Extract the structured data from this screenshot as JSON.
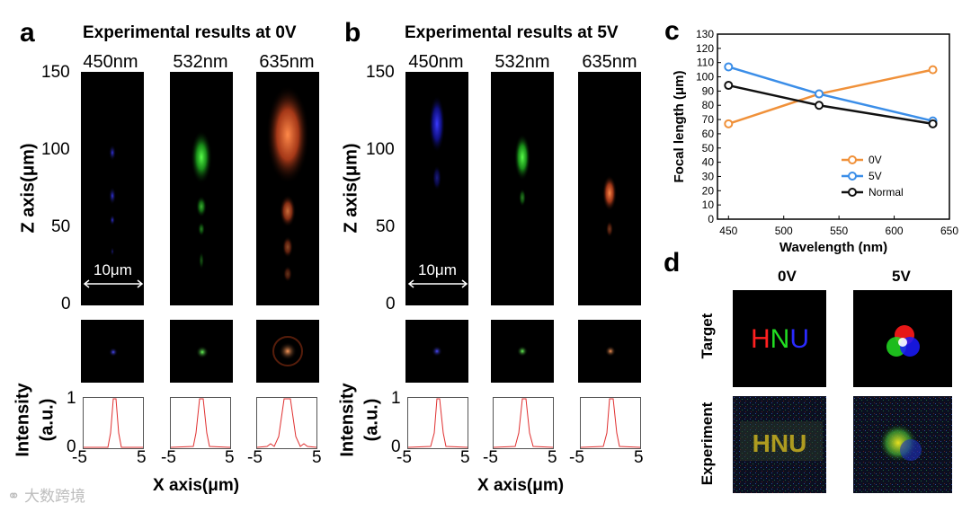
{
  "panel_a": {
    "label": "a",
    "title": "Experimental results at 0V",
    "wavelengths": [
      "450nm",
      "532nm",
      "635nm"
    ],
    "z_axis_label": "Z axis(μm)",
    "z_ticks": [
      "150",
      "100",
      "50",
      "0"
    ],
    "scale_bar": "10μm",
    "intensity_label_1": "Intensity",
    "intensity_label_2": "(a.u.)",
    "intensity_ticks": [
      "1",
      "0"
    ],
    "x_ticks": [
      "-5",
      "5",
      "-5",
      "5",
      "-5",
      "5"
    ],
    "x_axis_label": "X axis(μm)"
  },
  "panel_b": {
    "label": "b",
    "title": "Experimental results at 5V",
    "wavelengths": [
      "450nm",
      "532nm",
      "635nm"
    ],
    "z_axis_label": "Z axis(μm)",
    "z_ticks": [
      "150",
      "100",
      "50",
      "0"
    ],
    "scale_bar": "10μm",
    "intensity_label_1": "Intensity",
    "intensity_label_2": "(a.u.)",
    "intensity_ticks": [
      "1",
      "0"
    ],
    "x_ticks": [
      "-5",
      "5",
      "-5",
      "5",
      "-5",
      "5"
    ],
    "x_axis_label": "X axis(μm)"
  },
  "panel_c": {
    "label": "c"
  },
  "panel_d": {
    "label": "d",
    "col_0v": "0V",
    "col_5v": "5V",
    "row_target": "Target",
    "row_experiment": "Experiment",
    "target_text_h": "H",
    "target_text_n": "N",
    "target_text_u": "U",
    "experiment_text": "HNU"
  },
  "colors": {
    "blue": "#1a1aff",
    "green": "#22dd22",
    "red": "#ff5a2a",
    "orange": "#f0913a",
    "lightblue": "#3b8ee8"
  },
  "watermark": "大数跨境",
  "chart_data": {
    "type": "line",
    "xlabel": "Wavelength (nm)",
    "ylabel": "Focal length (μm)",
    "xlim": [
      440,
      640
    ],
    "ylim": [
      0,
      130
    ],
    "x_ticks": [
      450,
      500,
      550,
      600,
      650
    ],
    "y_ticks": [
      0,
      10,
      20,
      30,
      40,
      50,
      60,
      70,
      80,
      90,
      100,
      110,
      120,
      130
    ],
    "x": [
      450,
      532,
      635
    ],
    "series": [
      {
        "name": "0V",
        "values": [
          67,
          88,
          105
        ],
        "color": "#f0913a"
      },
      {
        "name": "5V",
        "values": [
          107,
          88,
          69
        ],
        "color": "#3b8ee8"
      },
      {
        "name": "Normal",
        "values": [
          94,
          80,
          67
        ],
        "color": "#111111"
      }
    ],
    "legend_position": "bottom-right",
    "grid": false
  }
}
